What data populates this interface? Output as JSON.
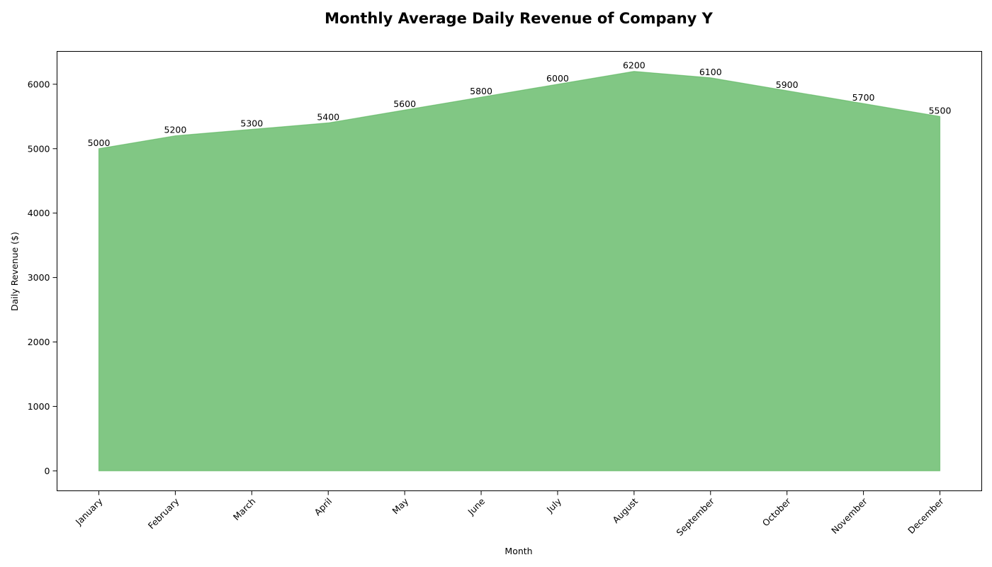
{
  "chart_data": {
    "type": "area",
    "title": "Monthly Average Daily Revenue of Company Y",
    "xlabel": "Month",
    "ylabel": "Daily Revenue ($)",
    "categories": [
      "January",
      "February",
      "March",
      "April",
      "May",
      "June",
      "July",
      "August",
      "September",
      "October",
      "November",
      "December"
    ],
    "series": [
      {
        "values": [
          5000,
          5200,
          5300,
          5400,
          5600,
          5800,
          6000,
          6200,
          6100,
          5900,
          5700,
          5500
        ],
        "color": "#4caf50"
      }
    ],
    "ylim": [
      -310,
      6510
    ],
    "yticks": [
      0,
      1000,
      2000,
      3000,
      4000,
      5000,
      6000
    ],
    "grid": false,
    "legend": "none"
  }
}
